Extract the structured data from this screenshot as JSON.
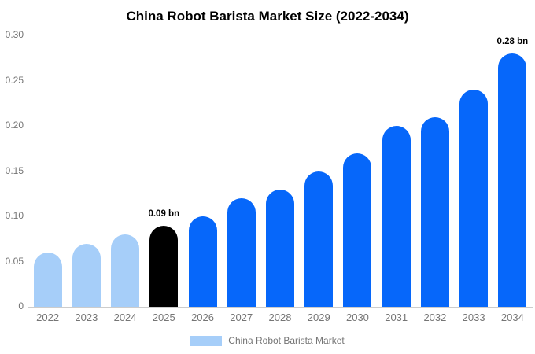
{
  "title": "China Robot Barista Market Size (2022-2034)",
  "legend": {
    "label": "China Robot Barista Market",
    "swatch_color": "#a6cef9"
  },
  "colors": {
    "light_blue": "#a6cef9",
    "highlight_black": "#000000",
    "blue": "#0667fa",
    "axis_line": "#cccccc",
    "tick_text": "#757575"
  },
  "chart_data": {
    "type": "bar",
    "title": "China Robot Barista Market Size (2022-2034)",
    "categories": [
      "2022",
      "2023",
      "2024",
      "2025",
      "2026",
      "2027",
      "2028",
      "2029",
      "2030",
      "2031",
      "2032",
      "2033",
      "2034"
    ],
    "values": [
      0.06,
      0.07,
      0.08,
      0.09,
      0.1,
      0.12,
      0.13,
      0.15,
      0.17,
      0.2,
      0.21,
      0.24,
      0.28
    ],
    "unit": "bn",
    "bar_colors": [
      "#a6cef9",
      "#a6cef9",
      "#a6cef9",
      "#000000",
      "#0667fa",
      "#0667fa",
      "#0667fa",
      "#0667fa",
      "#0667fa",
      "#0667fa",
      "#0667fa",
      "#0667fa",
      "#0667fa"
    ],
    "annotations": [
      {
        "category": "2025",
        "label": "0.09 bn"
      },
      {
        "category": "2034",
        "label": "0.28 bn"
      }
    ],
    "xlabel": "",
    "ylabel": "",
    "ylim": [
      0,
      0.3
    ],
    "yticks": [
      0,
      0.05,
      0.1,
      0.15,
      0.2,
      0.25,
      0.3
    ],
    "ytick_labels": [
      "0",
      "0.05",
      "0.10",
      "0.15",
      "0.20",
      "0.25",
      "0.30"
    ],
    "grid": false,
    "legend_entries": [
      "China Robot Barista Market"
    ],
    "legend_position": "bottom"
  }
}
